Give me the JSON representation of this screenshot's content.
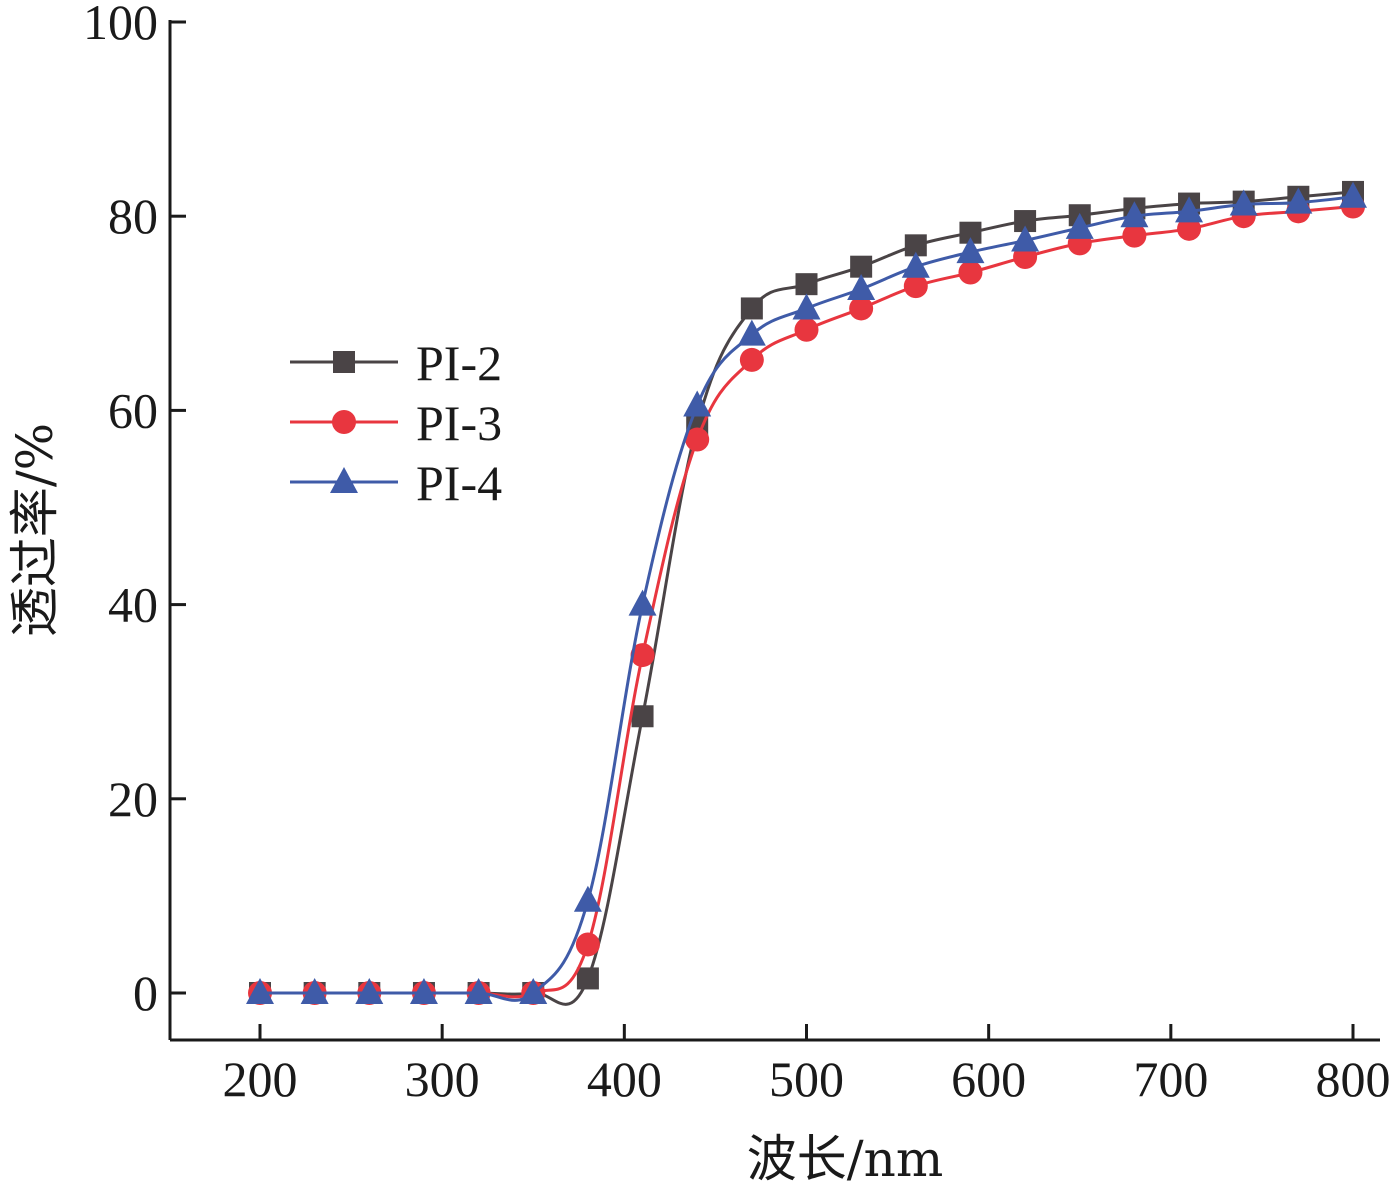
{
  "chart_data": {
    "type": "line",
    "xlabel": "波长/nm",
    "ylabel": "透过率/%",
    "xlim": [
      150,
      800
    ],
    "ylim": [
      0,
      100
    ],
    "xticks": [
      200,
      300,
      400,
      500,
      600,
      700,
      800
    ],
    "yticks": [
      0,
      20,
      40,
      60,
      80,
      100
    ],
    "legend_position": "center-left",
    "grid": false,
    "series": [
      {
        "name": "PI-2",
        "color": "#4a4446",
        "marker": "square",
        "x": [
          200,
          230,
          260,
          290,
          320,
          350,
          380,
          410,
          440,
          470,
          500,
          530,
          560,
          590,
          620,
          650,
          680,
          710,
          740,
          770,
          800
        ],
        "y": [
          0,
          0,
          0,
          0,
          0,
          0,
          1.5,
          28.5,
          58.5,
          70.5,
          73,
          74.8,
          77,
          78.3,
          79.5,
          80.1,
          80.8,
          81.3,
          81.5,
          82,
          82.5
        ]
      },
      {
        "name": "PI-3",
        "color": "#e8363f",
        "marker": "circle",
        "x": [
          200,
          230,
          260,
          290,
          320,
          350,
          380,
          410,
          440,
          470,
          500,
          530,
          560,
          590,
          620,
          650,
          680,
          710,
          740,
          770,
          800
        ],
        "y": [
          0,
          0,
          0,
          0,
          0,
          0,
          5,
          34.8,
          57,
          65.2,
          68.3,
          70.5,
          72.8,
          74.2,
          75.8,
          77.2,
          78,
          78.7,
          80,
          80.5,
          81
        ]
      },
      {
        "name": "PI-4",
        "color": "#3f5ba8",
        "marker": "triangle",
        "x": [
          200,
          230,
          260,
          290,
          320,
          350,
          380,
          410,
          440,
          470,
          500,
          530,
          560,
          590,
          620,
          650,
          680,
          710,
          740,
          770,
          800
        ],
        "y": [
          0,
          0,
          0,
          0,
          0,
          0,
          9.5,
          40,
          60.5,
          67.8,
          70.5,
          72.5,
          74.8,
          76.3,
          77.5,
          78.8,
          80,
          80.5,
          81.2,
          81.4,
          82
        ]
      }
    ]
  }
}
